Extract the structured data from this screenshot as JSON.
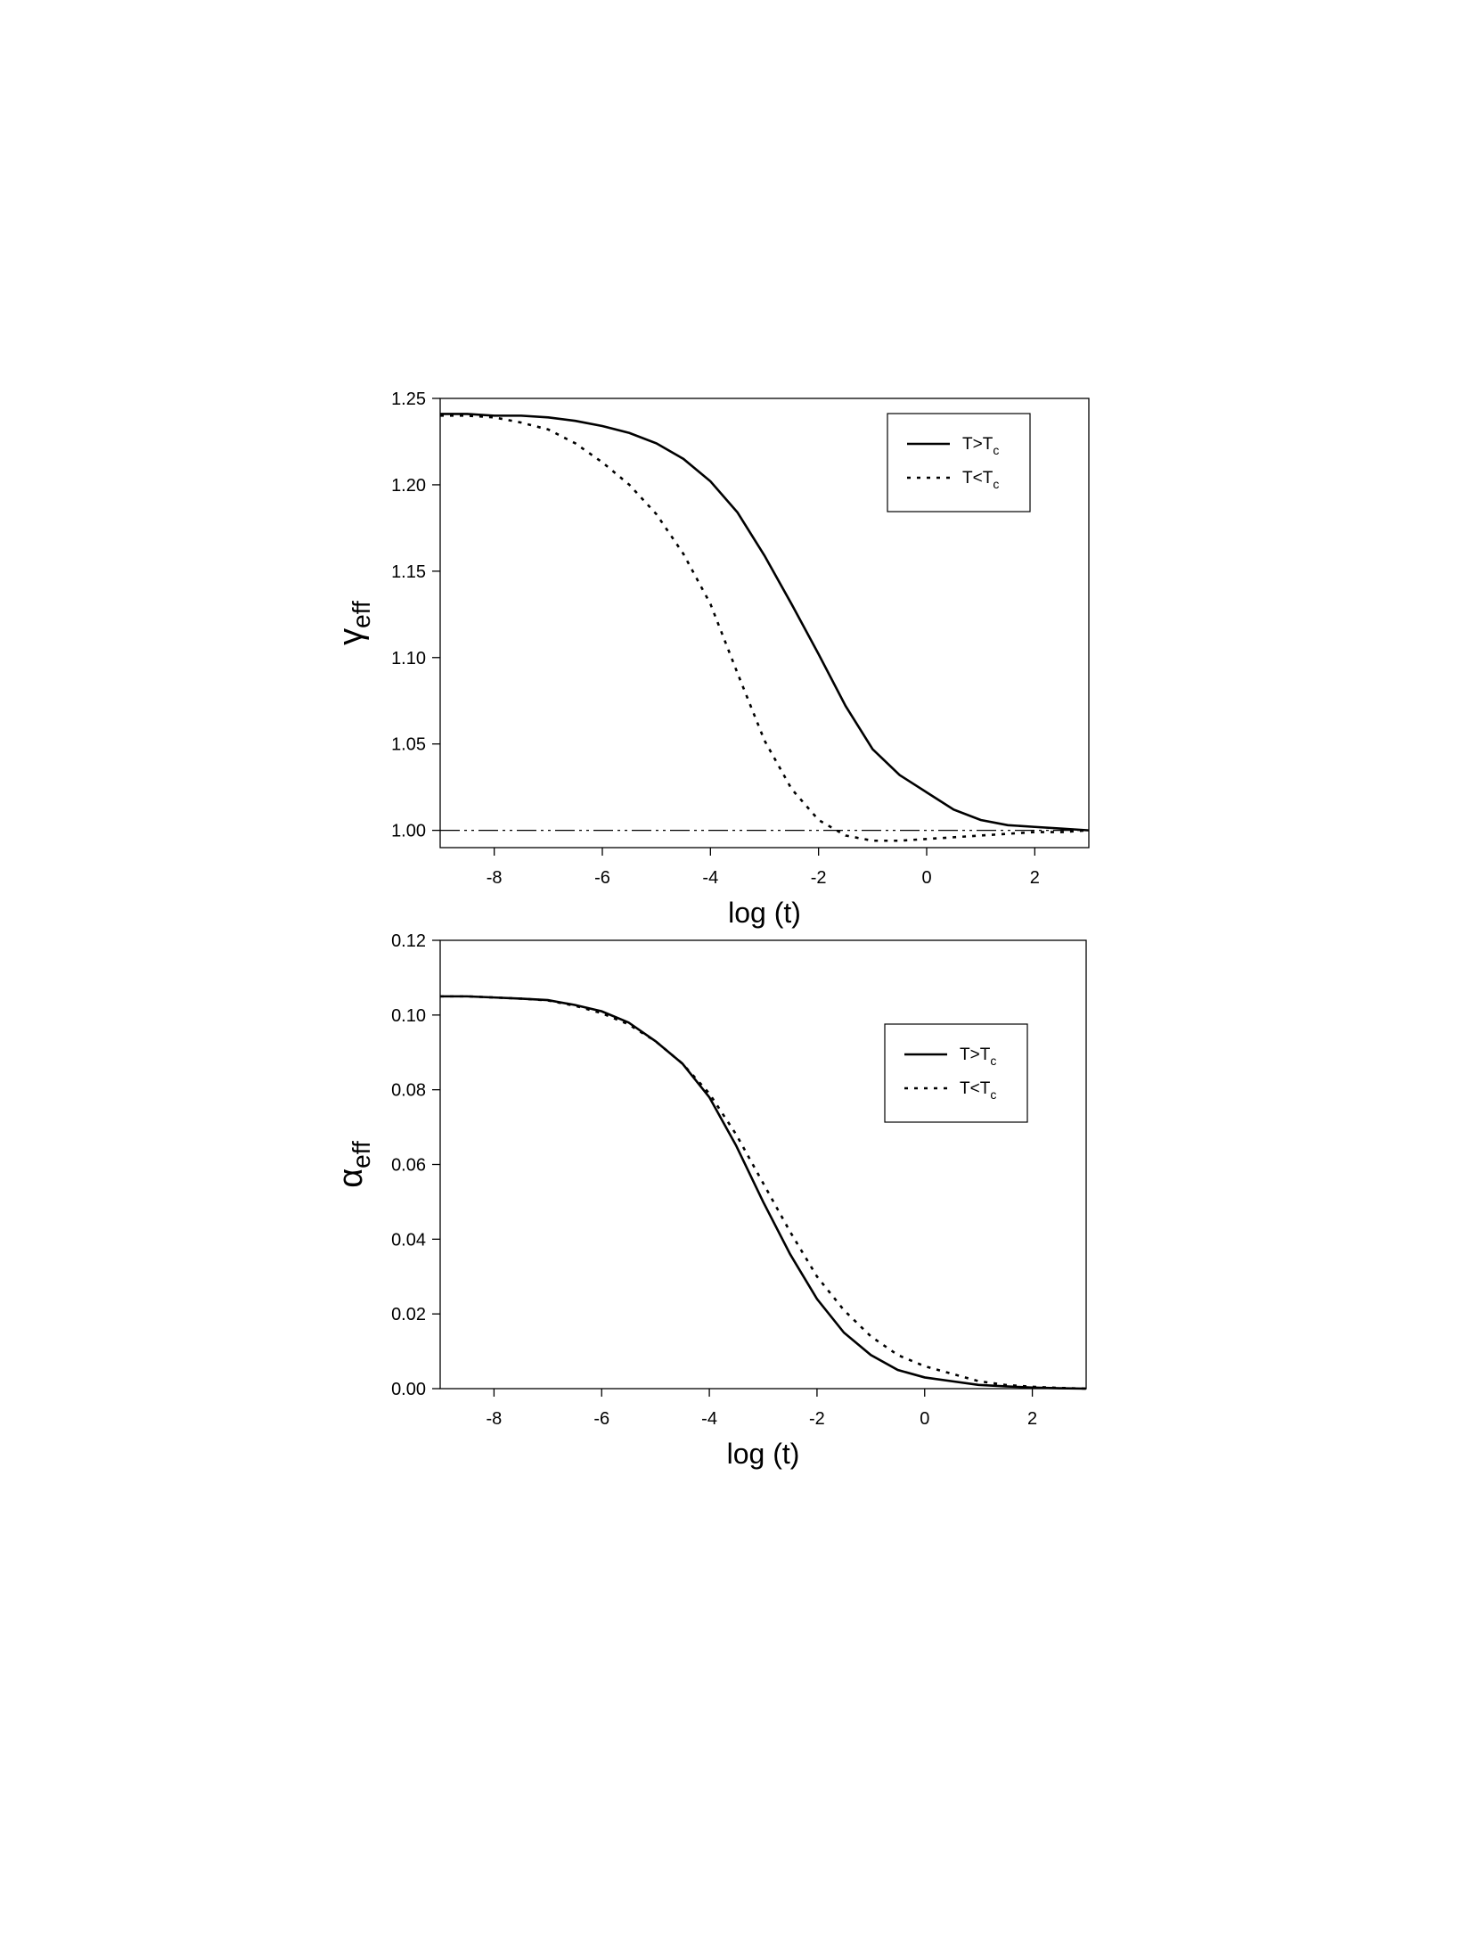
{
  "chart_data": [
    {
      "type": "line",
      "x_label": "log (t)",
      "y_label": "γeff",
      "x": [
        -9,
        -8.5,
        -8,
        -7.5,
        -7,
        -6.5,
        -6,
        -5.5,
        -5,
        -4.5,
        -4,
        -3.5,
        -3,
        -2.5,
        -2,
        -1.5,
        -1,
        -0.5,
        0,
        0.5,
        1,
        1.5,
        2,
        2.5,
        3
      ],
      "series": [
        {
          "name": "T>Tc",
          "color": "#000000",
          "dash": "solid",
          "values": [
            1.241,
            1.241,
            1.24,
            1.24,
            1.239,
            1.237,
            1.234,
            1.23,
            1.224,
            1.215,
            1.202,
            1.184,
            1.159,
            1.131,
            1.102,
            1.072,
            1.047,
            1.032,
            1.022,
            1.012,
            1.006,
            1.003,
            1.002,
            1.001,
            1.0
          ]
        },
        {
          "name": "T<Tc",
          "color": "#000000",
          "dash": "dotted",
          "values": [
            1.24,
            1.24,
            1.239,
            1.236,
            1.232,
            1.224,
            1.213,
            1.2,
            1.183,
            1.16,
            1.131,
            1.091,
            1.052,
            1.024,
            1.006,
            0.997,
            0.994,
            0.994,
            0.995,
            0.996,
            0.997,
            0.998,
            0.999,
            0.999,
            1.0
          ]
        }
      ],
      "reference_line": 1,
      "xlim": [
        -9,
        3
      ],
      "xticks": [
        -8,
        -6,
        -4,
        -2,
        0,
        2
      ],
      "ylim": [
        0.99,
        1.25
      ],
      "yticks": [
        {
          "value": 1,
          "label": "1.00"
        },
        1.05,
        {
          "value": 1.1,
          "label": "1.10"
        },
        1.15,
        {
          "value": 1.2,
          "label": "1.20"
        },
        1.25
      ],
      "legend": "upper right"
    },
    {
      "type": "line",
      "x_label": "log (t)",
      "y_label": "αeff",
      "x": [
        -9,
        -8.5,
        -8,
        -7.5,
        -7,
        -6.5,
        -6,
        -5.5,
        -5,
        -4.5,
        -4,
        -3.5,
        -3,
        -2.5,
        -2,
        -1.5,
        -1,
        -0.5,
        0,
        0.5,
        1,
        1.5,
        2,
        2.5,
        3
      ],
      "series": [
        {
          "name": "T>Tc",
          "color": "#000000",
          "dash": "solid",
          "values": [
            0.105,
            0.105,
            0.1047,
            0.1044,
            0.104,
            0.1027,
            0.101,
            0.098,
            0.093,
            0.087,
            0.078,
            0.065,
            0.05,
            0.036,
            0.024,
            0.015,
            0.009,
            0.005,
            0.003,
            0.002,
            0.001,
            0.0006,
            0.0003,
            0.0001,
            0
          ]
        },
        {
          "name": "T<Tc",
          "color": "#000000",
          "dash": "dotted",
          "values": [
            0.105,
            0.105,
            0.1047,
            0.1044,
            0.1039,
            0.1025,
            0.1005,
            0.0975,
            0.093,
            0.087,
            0.079,
            0.068,
            0.055,
            0.042,
            0.03,
            0.021,
            0.014,
            0.009,
            0.006,
            0.004,
            0.002,
            0.001,
            0.0005,
            0.0002,
            0
          ]
        }
      ],
      "xlim": [
        -9,
        3
      ],
      "xticks": [
        -8,
        -6,
        -4,
        -2,
        0,
        2
      ],
      "ylim": [
        0,
        0.12
      ],
      "yticks": [
        {
          "value": 0,
          "label": "0.00"
        },
        0.02,
        0.04,
        0.06,
        0.08,
        {
          "value": 0.1,
          "label": "0.10"
        },
        0.12
      ],
      "legend": "upper right"
    }
  ]
}
